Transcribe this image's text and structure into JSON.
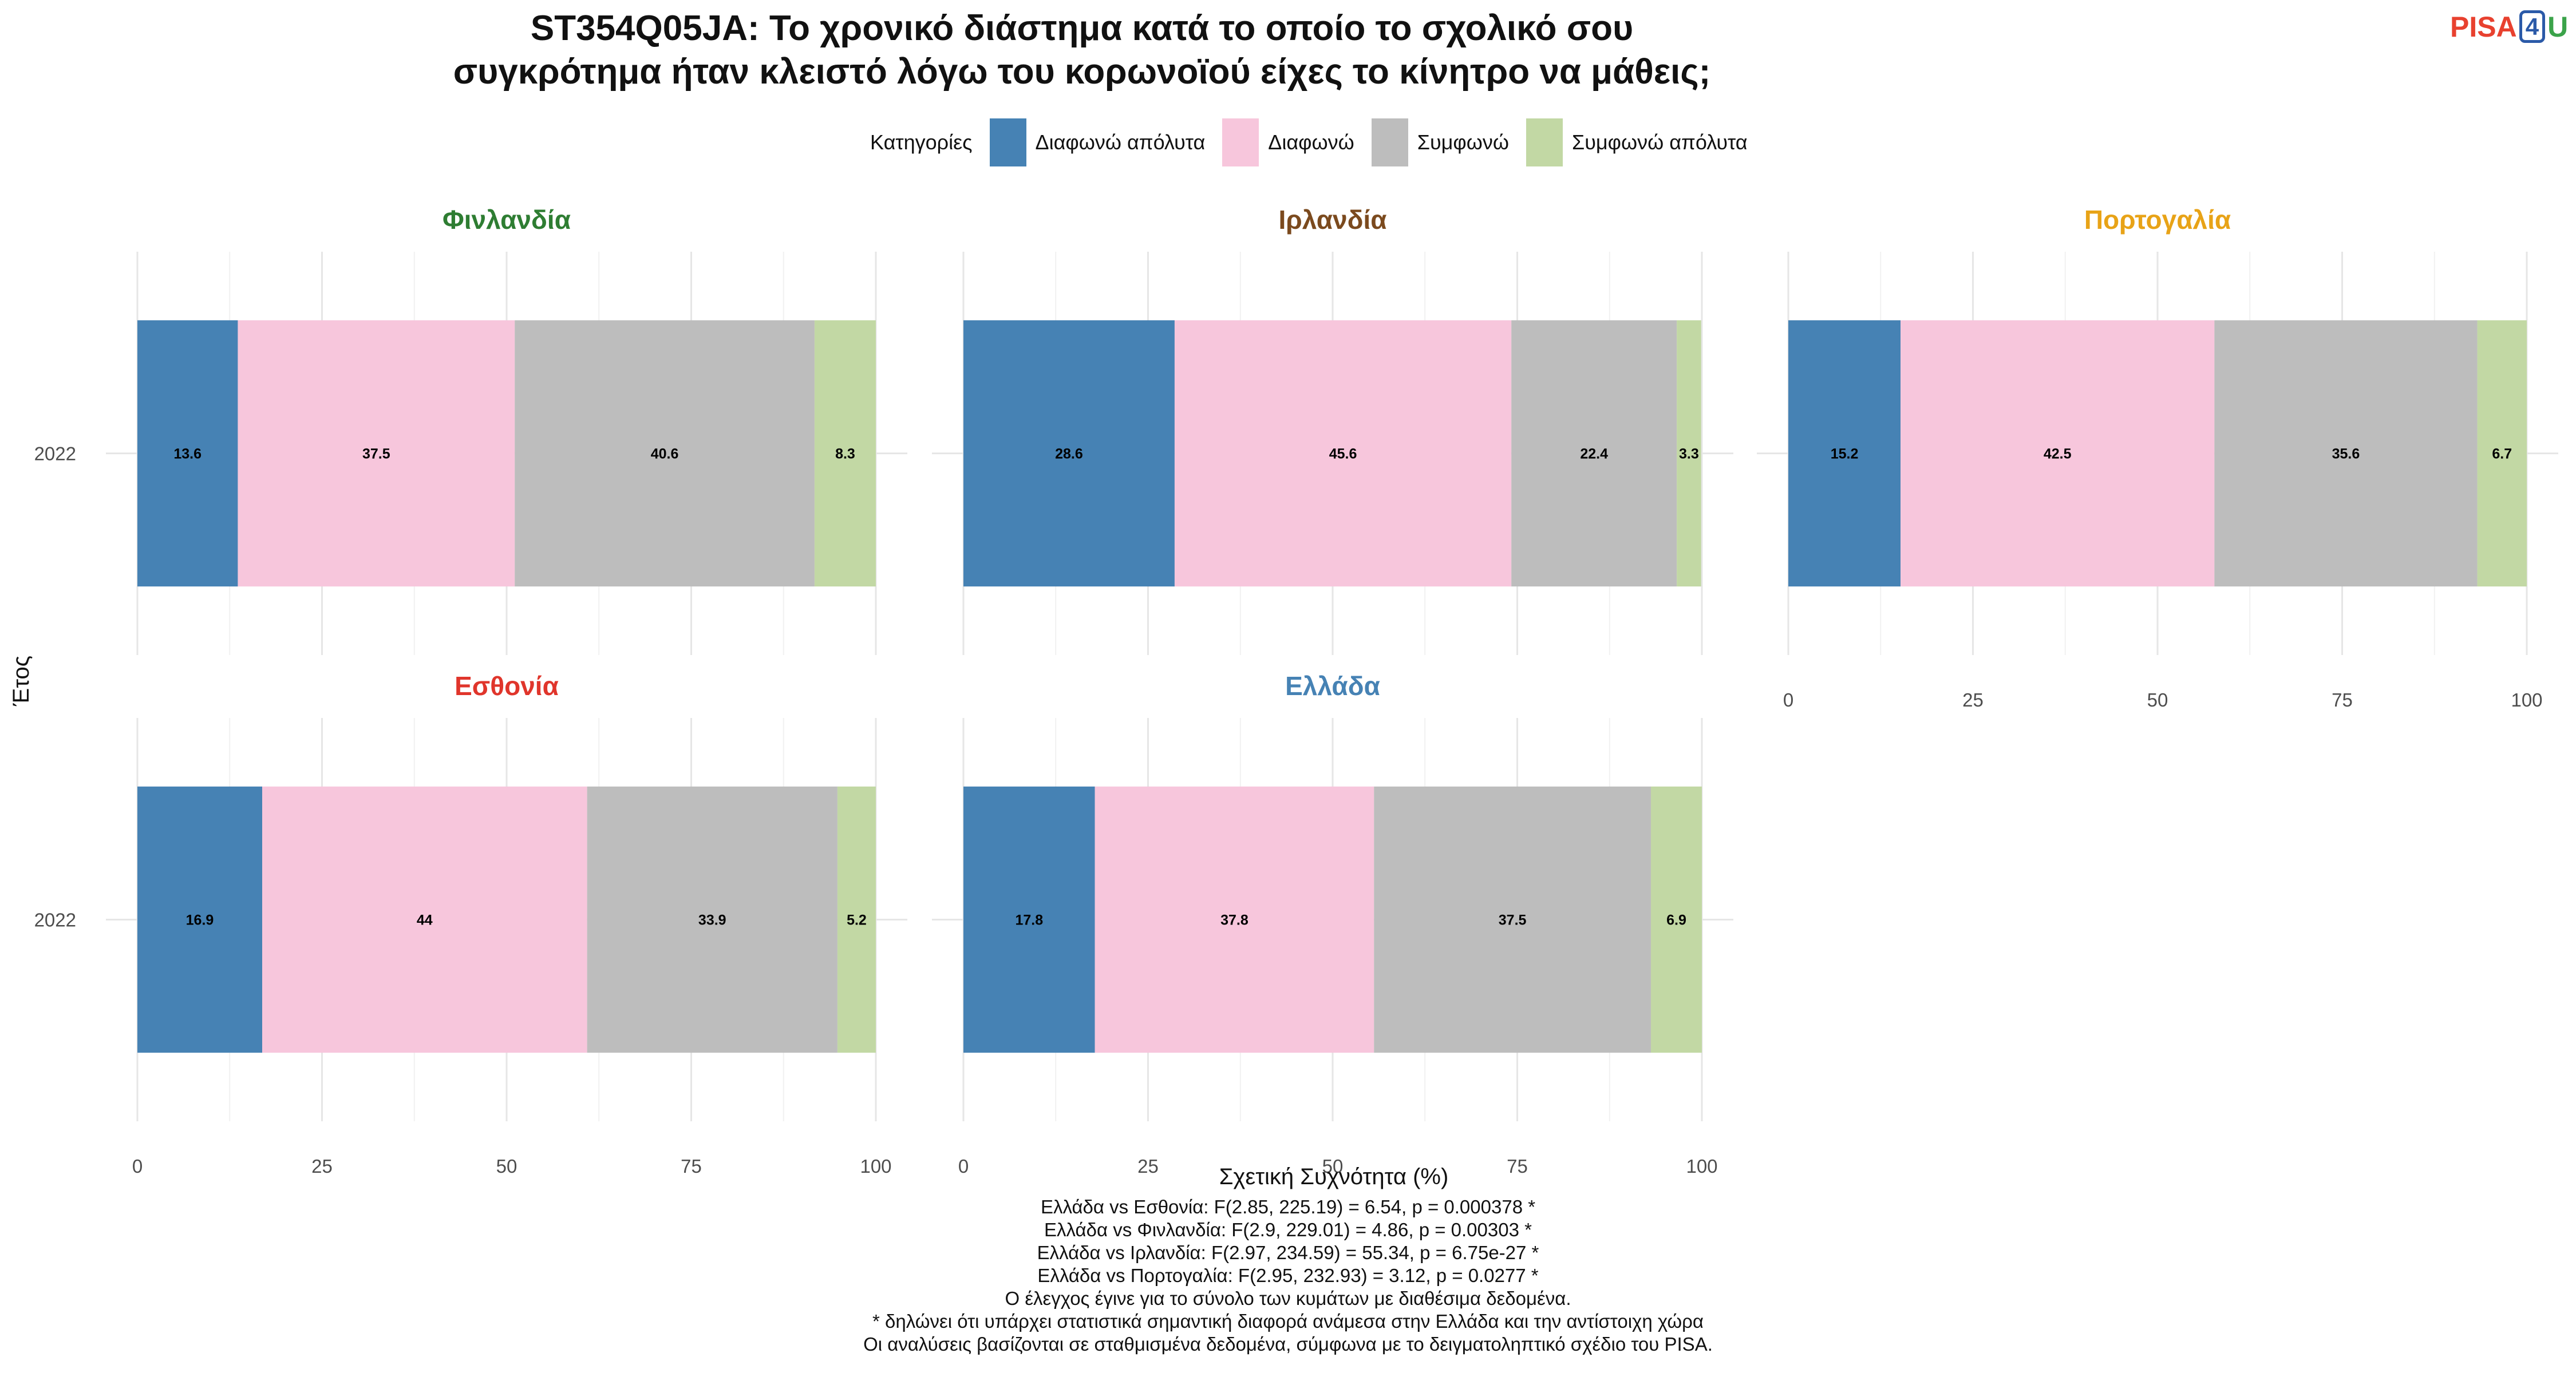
{
  "title_line1": "ST354Q05JA: Το χρονικό διάστημα κατά το οποίο το σχολικό σου",
  "title_line2": "συγκρότημα ήταν κλειστό λόγω του κορωνοϊού είχες το κίνητρο να μάθεις;",
  "logo": {
    "part1": "PISA",
    "part2": "4",
    "part3": "U"
  },
  "legend": {
    "title": "Κατηγορίες",
    "items": [
      {
        "label": "Διαφωνώ απόλυτα",
        "color": "#4682b4"
      },
      {
        "label": "Διαφωνώ",
        "color": "#f7c6dc"
      },
      {
        "label": "Συμφωνώ",
        "color": "#bdbdbd"
      },
      {
        "label": "Συμφωνώ απόλυτα",
        "color": "#c2d8a4"
      }
    ]
  },
  "chart_data": {
    "type": "bar",
    "orientation": "horizontal",
    "stacked": true,
    "xlabel": "Σχετική Συχνότητα (%)",
    "ylabel": "Έτος",
    "xlim": [
      0,
      100
    ],
    "xticks": [
      "0",
      "25",
      "50",
      "75",
      "100"
    ],
    "series_names": [
      "Διαφωνώ απόλυτα",
      "Διαφωνώ",
      "Συμφωνώ",
      "Συμφωνώ απόλυτα"
    ],
    "panels": [
      {
        "country": "Φινλανδία",
        "title_color": "#2e7d32",
        "year": "2022",
        "values": [
          13.6,
          37.5,
          40.6,
          8.3
        ],
        "labels": [
          "13.6",
          "37.5",
          "40.6",
          "8.3"
        ]
      },
      {
        "country": "Ιρλανδία",
        "title_color": "#7b4a1e",
        "year": "2022",
        "values": [
          28.6,
          45.6,
          22.4,
          3.3
        ],
        "labels": [
          "28.6",
          "45.6",
          "22.4",
          "3.3"
        ]
      },
      {
        "country": "Πορτογαλία",
        "title_color": "#e8a317",
        "year": "2022",
        "values": [
          15.2,
          42.5,
          35.6,
          6.7
        ],
        "labels": [
          "15.2",
          "42.5",
          "35.6",
          "6.7"
        ]
      },
      {
        "country": "Εσθονία",
        "title_color": "#e0352b",
        "year": "2022",
        "values": [
          16.9,
          44,
          33.9,
          5.2
        ],
        "labels": [
          "16.9",
          "44",
          "33.9",
          "5.2"
        ]
      },
      {
        "country": "Ελλάδα",
        "title_color": "#4682b4",
        "year": "2022",
        "values": [
          17.8,
          37.8,
          37.5,
          6.9
        ],
        "labels": [
          "17.8",
          "37.8",
          "37.5",
          "6.9"
        ]
      }
    ]
  },
  "notes": [
    "Ελλάδα vs Εσθονία: F(2.85, 225.19) = 6.54, p = 0.000378 *",
    "Ελλάδα vs Φινλανδία: F(2.9, 229.01) = 4.86, p = 0.00303 *",
    "Ελλάδα vs Ιρλανδία: F(2.97, 234.59) = 55.34, p = 6.75e-27 *",
    "Ελλάδα vs Πορτογαλία: F(2.95, 232.93) = 3.12, p = 0.0277 *",
    "Ο έλεγχος έγινε για το σύνολο των κυμάτων με διαθέσιμα δεδομένα.",
    "* δηλώνει ότι υπάρχει στατιστικά σημαντική διαφορά ανάμεσα στην Ελλάδα και την αντίστοιχη χώρα",
    "Οι αναλύσεις βασίζονται σε σταθμισμένα δεδομένα, σύμφωνα με το δειγματοληπτικό σχέδιο του PISA."
  ]
}
